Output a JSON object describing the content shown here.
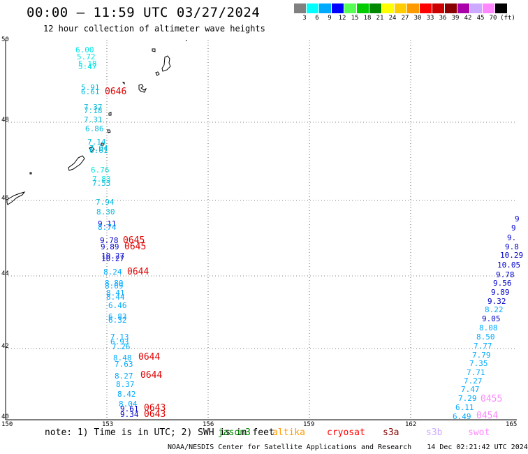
{
  "header": {
    "title": "00:00 – 11:59 UTC 03/27/2024",
    "subtitle": "12 hour collection of altimeter wave heights"
  },
  "legend": {
    "unit": "(ft)",
    "bins": [
      {
        "label": "3",
        "color": "#808080"
      },
      {
        "label": "6",
        "color": "#00ffff"
      },
      {
        "label": "9",
        "color": "#00aaff"
      },
      {
        "label": "12",
        "color": "#0000ff"
      },
      {
        "label": "15",
        "color": "#55ff55"
      },
      {
        "label": "18",
        "color": "#00cc00"
      },
      {
        "label": "21",
        "color": "#008800"
      },
      {
        "label": "24",
        "color": "#ffff00"
      },
      {
        "label": "27",
        "color": "#ffcc00"
      },
      {
        "label": "30",
        "color": "#ff9900"
      },
      {
        "label": "33",
        "color": "#ff0000"
      },
      {
        "label": "36",
        "color": "#cc0000"
      },
      {
        "label": "39",
        "color": "#880000"
      },
      {
        "label": "42",
        "color": "#aa00aa"
      },
      {
        "label": "45",
        "color": "#ccaaff"
      },
      {
        "label": "70",
        "color": "#ff88ff"
      },
      {
        "label": "",
        "color": "#000000"
      }
    ]
  },
  "axes": {
    "x_ticks": [
      "150",
      "153",
      "156",
      "159",
      "162",
      "165"
    ],
    "y_ticks": [
      "50",
      "48",
      "46",
      "44",
      "42",
      "40"
    ]
  },
  "track_west": {
    "values": [
      "6.00",
      "5.72",
      "5.18",
      "5.47",
      "5.91",
      "6.61",
      "7.37",
      "7.18",
      "7.31",
      "6.86",
      "7.14",
      "7.04",
      "6.61",
      "6.76",
      "7.83",
      "7.53",
      "7.94",
      "8.30",
      "9.11",
      "8.74",
      "9.78",
      "9.89",
      "10.27",
      "10.27",
      "8.24",
      "8.80",
      "8.69",
      "8.41",
      "8.44",
      "6.46",
      "6.83",
      "6.32",
      "7.13",
      "6.93",
      "7.26",
      "8.48",
      "7.63",
      "8.27",
      "8.37",
      "8.42",
      "8.04",
      "9.61",
      "9.34"
    ],
    "colors": [
      "#00e5e5",
      "#00e5e5",
      "#00e5e5",
      "#00e5e5",
      "#00bbdd",
      "#00bbdd",
      "#00bbdd",
      "#00bbdd",
      "#00bbdd",
      "#00bbdd",
      "#00bbdd",
      "#00bbdd",
      "#00bbdd",
      "#00e5e5",
      "#00e5e5",
      "#00bbdd",
      "#00bbdd",
      "#00bbdd",
      "#0000cc",
      "#00aaff",
      "#0000cc",
      "#0000cc",
      "#0000cc",
      "#0000cc",
      "#00aaff",
      "#00aaff",
      "#00aaff",
      "#00aaff",
      "#00aaff",
      "#00aaff",
      "#00aaff",
      "#00aaff",
      "#00aaff",
      "#00aaff",
      "#00aaff",
      "#00aaff",
      "#00aaff",
      "#00aaff",
      "#00aaff",
      "#00aaff",
      "#00aaff",
      "#0000cc",
      "#0000cc"
    ]
  },
  "track_east": {
    "values": [
      "9",
      "9",
      "9.",
      "9.8",
      "10.29",
      "10.05",
      "9.78",
      "9.56",
      "9.89",
      "9.32",
      "8.22",
      "9.05",
      "8.08",
      "8.50",
      "7.77",
      "7.79",
      "7.35",
      "7.71",
      "7.27",
      "7.47",
      "7.29",
      "6.11",
      "6.49"
    ],
    "colors": [
      "#0000cc",
      "#0000cc",
      "#0000cc",
      "#0000cc",
      "#0000cc",
      "#0000cc",
      "#0000cc",
      "#0000cc",
      "#0000cc",
      "#0000cc",
      "#00aaff",
      "#0000cc",
      "#00aaff",
      "#00aaff",
      "#00aaff",
      "#00aaff",
      "#00aaff",
      "#00aaff",
      "#00aaff",
      "#00aaff",
      "#00aaff",
      "#00aaff",
      "#00aaff"
    ]
  },
  "pass_times_west": [
    "0646",
    "0645",
    "0645",
    "0644",
    "0644",
    "0644",
    "0643",
    "0643"
  ],
  "pass_times_east": [
    {
      "label": "0455",
      "color": "#ff88ff"
    },
    {
      "label": "0454",
      "color": "#ff88ff"
    }
  ],
  "footer": {
    "note_prefix": "note: 1) Time is in UTC; 2) SWH is in feet",
    "satellites": [
      {
        "name": "jason3",
        "color": "#008800"
      },
      {
        "name": "altika",
        "color": "#ff9900"
      },
      {
        "name": "cryosat",
        "color": "#ff0000"
      },
      {
        "name": "s3a",
        "color": "#880000"
      },
      {
        "name": "s3b",
        "color": "#ccaaff"
      },
      {
        "name": "swot",
        "color": "#ff88ff"
      }
    ],
    "credit": "NOAA/NESDIS Center for Satellite Applications and Research",
    "generated": "14 Dec 02:21:42 UTC 2024"
  }
}
